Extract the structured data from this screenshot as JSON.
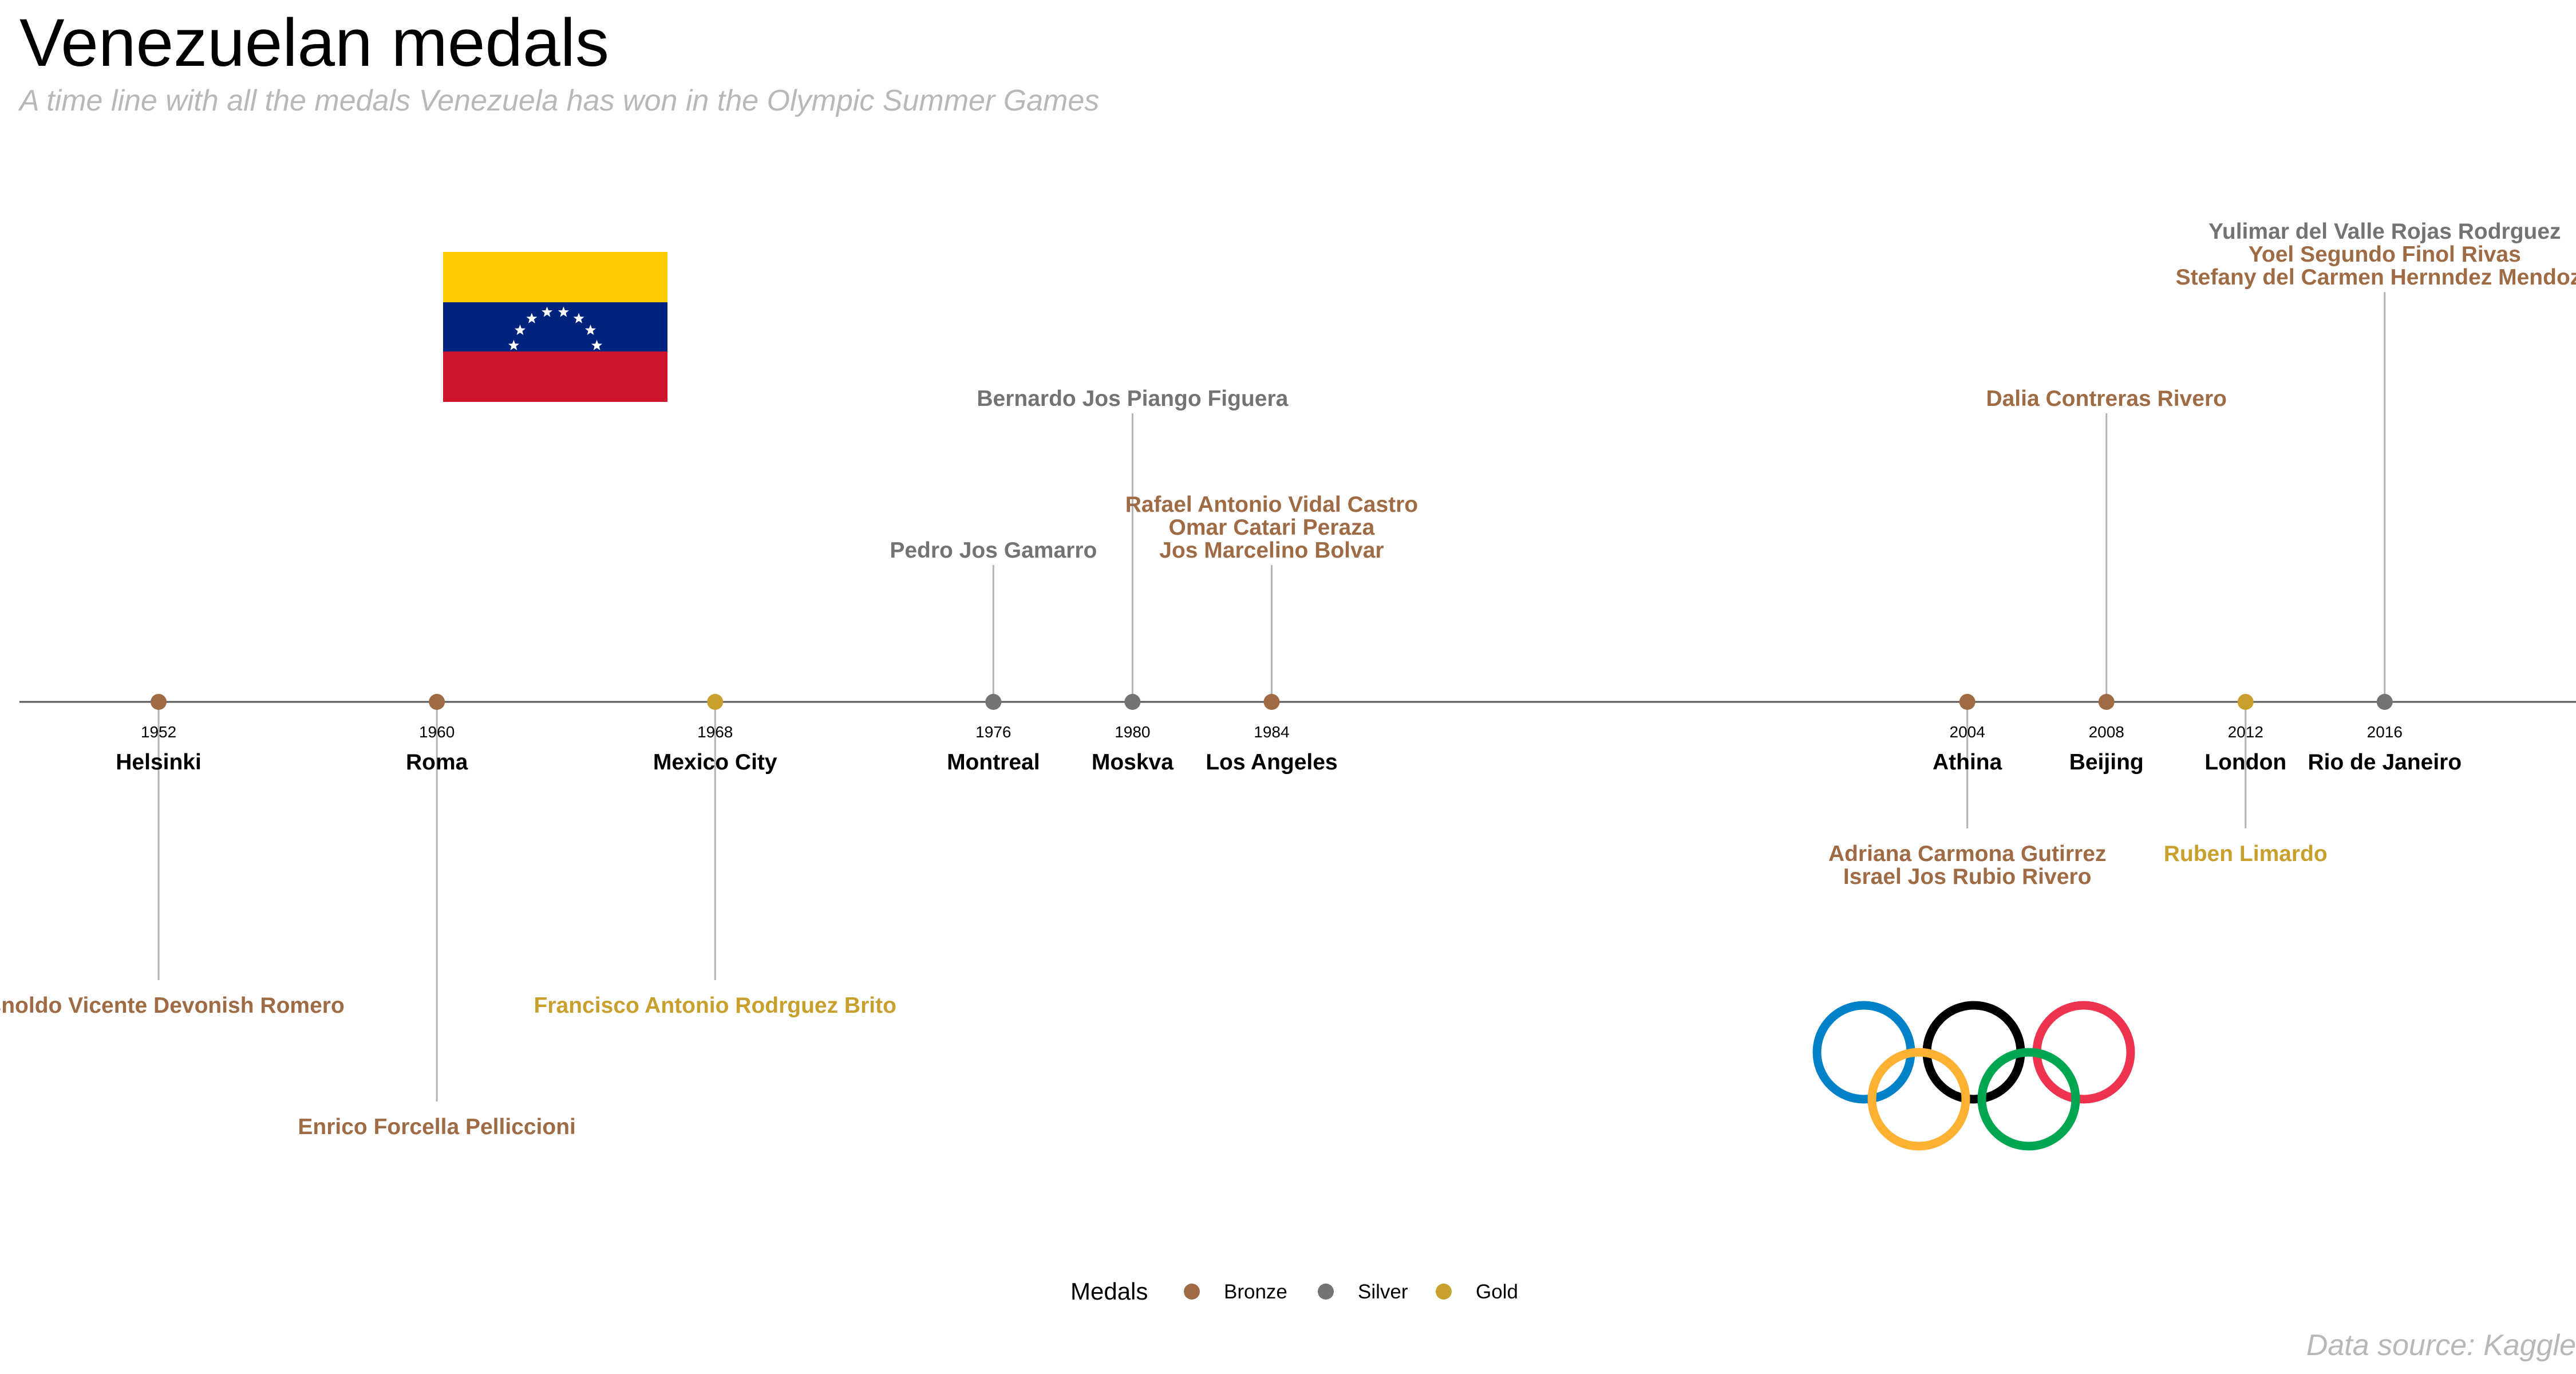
{
  "title": "Venezuelan medals",
  "subtitle": "A time line with all the medals Venezuela has won in the Olympic Summer Games",
  "caption": "Data source: Kaggle",
  "colors": {
    "Bronze": "#9f6b45",
    "Silver": "#737373",
    "Gold": "#c8a02e",
    "axis": "#555555",
    "stem": "#b3b3b3"
  },
  "legend": {
    "title": "Medals",
    "items": [
      "Bronze",
      "Silver",
      "Gold"
    ]
  },
  "chart_data": {
    "type": "timeline",
    "xlim": [
      1948,
      2021.5
    ],
    "ylim": [
      -0.7,
      0.7
    ],
    "games": [
      {
        "year": 1952,
        "city": "Helsinki",
        "medal": "Bronze",
        "level": -0.5,
        "athletes": [
          {
            "name": "Asnoldo Vicente Devonish Romero",
            "medal": "Bronze"
          }
        ]
      },
      {
        "year": 1960,
        "city": "Roma",
        "medal": "Bronze",
        "level": -0.7,
        "athletes": [
          {
            "name": "Enrico Forcella Pelliccioni",
            "medal": "Bronze"
          }
        ]
      },
      {
        "year": 1968,
        "city": "Mexico City",
        "medal": "Gold",
        "level": -0.5,
        "athletes": [
          {
            "name": "Francisco Antonio Rodrguez Brito",
            "medal": "Gold"
          }
        ]
      },
      {
        "year": 1976,
        "city": "Montreal",
        "medal": "Silver",
        "level": 0.25,
        "athletes": [
          {
            "name": "Pedro Jos Gamarro",
            "medal": "Silver"
          }
        ]
      },
      {
        "year": 1980,
        "city": "Moskva",
        "medal": "Silver",
        "level": 0.5,
        "athletes": [
          {
            "name": "Bernardo Jos Piango Figuera",
            "medal": "Silver"
          }
        ]
      },
      {
        "year": 1984,
        "city": "Los Angeles",
        "medal": "Bronze",
        "level": 0.25,
        "athletes": [
          {
            "name": "Rafael Antonio Vidal Castro",
            "medal": "Bronze"
          },
          {
            "name": "Omar Catari Peraza",
            "medal": "Bronze"
          },
          {
            "name": "Jos Marcelino Bolvar",
            "medal": "Bronze"
          }
        ]
      },
      {
        "year": 2004,
        "city": "Athina",
        "medal": "Bronze",
        "level": -0.25,
        "athletes": [
          {
            "name": "Adriana Carmona Gutirrez",
            "medal": "Bronze"
          },
          {
            "name": "Israel Jos Rubio Rivero",
            "medal": "Bronze"
          }
        ]
      },
      {
        "year": 2008,
        "city": "Beijing",
        "medal": "Bronze",
        "level": 0.5,
        "athletes": [
          {
            "name": "Dalia Contreras Rivero",
            "medal": "Bronze"
          }
        ]
      },
      {
        "year": 2012,
        "city": "London",
        "medal": "Gold",
        "level": -0.25,
        "athletes": [
          {
            "name": "Ruben Limardo",
            "medal": "Gold"
          }
        ]
      },
      {
        "year": 2016,
        "city": "Rio de Janeiro",
        "medal": "Silver",
        "level": 0.7,
        "athletes": [
          {
            "name": "Yulimar del Valle Rojas Rodrguez",
            "medal": "Silver"
          },
          {
            "name": "Yoel Segundo Finol Rivas",
            "medal": "Bronze"
          },
          {
            "name": "Stefany del Carmen Hernndez Mendoza",
            "medal": "Bronze"
          }
        ]
      }
    ]
  }
}
